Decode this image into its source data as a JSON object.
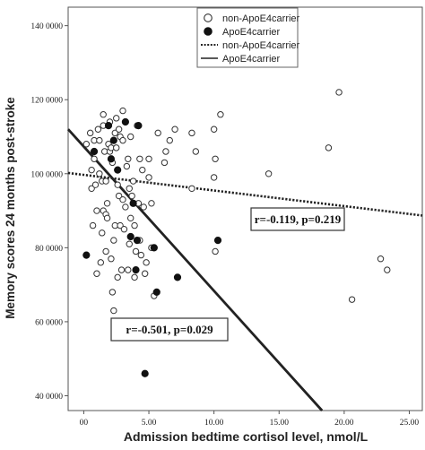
{
  "chart_data": {
    "type": "scatter",
    "xlabel": "Admission bedtime cortisol level, nmol/L",
    "ylabel": "Memory scores 24 months post-stroke",
    "xlim": [
      -1.2,
      26
    ],
    "ylim": [
      36000,
      145000
    ],
    "x_ticks": [
      0,
      5,
      10,
      15,
      20,
      25
    ],
    "x_tick_labels": [
      "00",
      "5.00",
      "10.00",
      "15.00",
      "20.00",
      "25.00"
    ],
    "y_ticks": [
      40000,
      60000,
      80000,
      100000,
      120000,
      140000
    ],
    "y_tick_labels": [
      "40 0000",
      "60 0000",
      "80 0000",
      "100 0000",
      "120 0000",
      "140 0000"
    ],
    "grid": false,
    "legend_position": "top-center",
    "series": [
      {
        "name": "non-ApoE4carrier",
        "marker": "open-circle",
        "points": [
          [
            0.2,
            108000
          ],
          [
            0.5,
            111000
          ],
          [
            0.6,
            101000
          ],
          [
            0.6,
            96000
          ],
          [
            0.7,
            86000
          ],
          [
            0.8,
            109000
          ],
          [
            0.8,
            104000
          ],
          [
            0.9,
            97000
          ],
          [
            1.0,
            73000
          ],
          [
            1.0,
            90000
          ],
          [
            1.1,
            112000
          ],
          [
            1.2,
            100000
          ],
          [
            1.2,
            109000
          ],
          [
            1.3,
            76000
          ],
          [
            1.4,
            84000
          ],
          [
            1.4,
            98000
          ],
          [
            1.5,
            113000
          ],
          [
            1.5,
            116000
          ],
          [
            1.5,
            90000
          ],
          [
            1.6,
            106000
          ],
          [
            1.7,
            89000
          ],
          [
            1.7,
            79000
          ],
          [
            1.7,
            98000
          ],
          [
            1.8,
            92000
          ],
          [
            1.8,
            88000
          ],
          [
            1.9,
            108000
          ],
          [
            2.0,
            106000
          ],
          [
            2.0,
            114000
          ],
          [
            2.1,
            77000
          ],
          [
            2.1,
            107000
          ],
          [
            2.2,
            103000
          ],
          [
            2.2,
            68000
          ],
          [
            2.3,
            82000
          ],
          [
            2.3,
            63000
          ],
          [
            2.4,
            111000
          ],
          [
            2.4,
            86000
          ],
          [
            2.5,
            115000
          ],
          [
            2.5,
            107000
          ],
          [
            2.6,
            72000
          ],
          [
            2.6,
            97000
          ],
          [
            2.7,
            94000
          ],
          [
            2.7,
            112000
          ],
          [
            2.8,
            110000
          ],
          [
            2.8,
            86000
          ],
          [
            2.9,
            74000
          ],
          [
            3.0,
            109000
          ],
          [
            3.0,
            117000
          ],
          [
            3.0,
            93000
          ],
          [
            3.1,
            85000
          ],
          [
            3.2,
            91000
          ],
          [
            3.3,
            102000
          ],
          [
            3.4,
            104000
          ],
          [
            3.4,
            74000
          ],
          [
            3.5,
            96000
          ],
          [
            3.5,
            81000
          ],
          [
            3.6,
            110000
          ],
          [
            3.6,
            88000
          ],
          [
            3.7,
            94000
          ],
          [
            3.8,
            98000
          ],
          [
            3.9,
            86000
          ],
          [
            3.9,
            72000
          ],
          [
            4.0,
            79000
          ],
          [
            4.1,
            113000
          ],
          [
            4.2,
            92000
          ],
          [
            4.3,
            82000
          ],
          [
            4.3,
            104000
          ],
          [
            4.4,
            78000
          ],
          [
            4.5,
            101000
          ],
          [
            4.6,
            91000
          ],
          [
            4.7,
            73000
          ],
          [
            4.8,
            76000
          ],
          [
            5.0,
            99000
          ],
          [
            5.0,
            104000
          ],
          [
            5.2,
            80000
          ],
          [
            5.2,
            92000
          ],
          [
            5.4,
            67000
          ],
          [
            5.7,
            111000
          ],
          [
            6.2,
            103000
          ],
          [
            6.3,
            106000
          ],
          [
            6.6,
            109000
          ],
          [
            7.0,
            112000
          ],
          [
            8.3,
            111000
          ],
          [
            8.3,
            96000
          ],
          [
            8.6,
            106000
          ],
          [
            10.0,
            112000
          ],
          [
            10.0,
            99000
          ],
          [
            10.1,
            79000
          ],
          [
            10.1,
            104000
          ],
          [
            10.5,
            116000
          ],
          [
            14.2,
            100000
          ],
          [
            18.8,
            107000
          ],
          [
            19.6,
            122000
          ],
          [
            20.6,
            66000
          ],
          [
            22.8,
            77000
          ],
          [
            23.3,
            74000
          ]
        ]
      },
      {
        "name": "ApoE4carrier",
        "marker": "filled-circle",
        "points": [
          [
            0.2,
            78000
          ],
          [
            0.8,
            106000
          ],
          [
            1.9,
            113000
          ],
          [
            2.1,
            104000
          ],
          [
            2.3,
            109000
          ],
          [
            2.6,
            101000
          ],
          [
            3.2,
            114000
          ],
          [
            3.6,
            83000
          ],
          [
            3.8,
            92000
          ],
          [
            4.0,
            74000
          ],
          [
            4.1,
            82000
          ],
          [
            4.2,
            113000
          ],
          [
            4.7,
            46000
          ],
          [
            5.4,
            80000
          ],
          [
            5.6,
            68000
          ],
          [
            7.2,
            72000
          ],
          [
            10.3,
            82000
          ]
        ]
      }
    ],
    "fit_lines": [
      {
        "name": "non-ApoE4carrier",
        "style": "dotted",
        "x": [
          -1.2,
          26
        ],
        "y": [
          100200,
          88700
        ]
      },
      {
        "name": "ApoE4carrier",
        "style": "solid",
        "x": [
          -1.2,
          18.3
        ],
        "y": [
          112000,
          36000
        ]
      }
    ],
    "annotations": [
      {
        "text": "r=-0.119,  p=0.219"
      },
      {
        "text": "r=-0.501,  p=0.029"
      }
    ],
    "legend": [
      {
        "label": "non-ApoE4carrier",
        "symbol": "open-circle"
      },
      {
        "label": "ApoE4carrier",
        "symbol": "filled-circle"
      },
      {
        "label": "non-ApoE4carrier",
        "symbol": "dotted-line"
      },
      {
        "label": "ApoE4carrier",
        "symbol": "solid-line"
      }
    ]
  }
}
